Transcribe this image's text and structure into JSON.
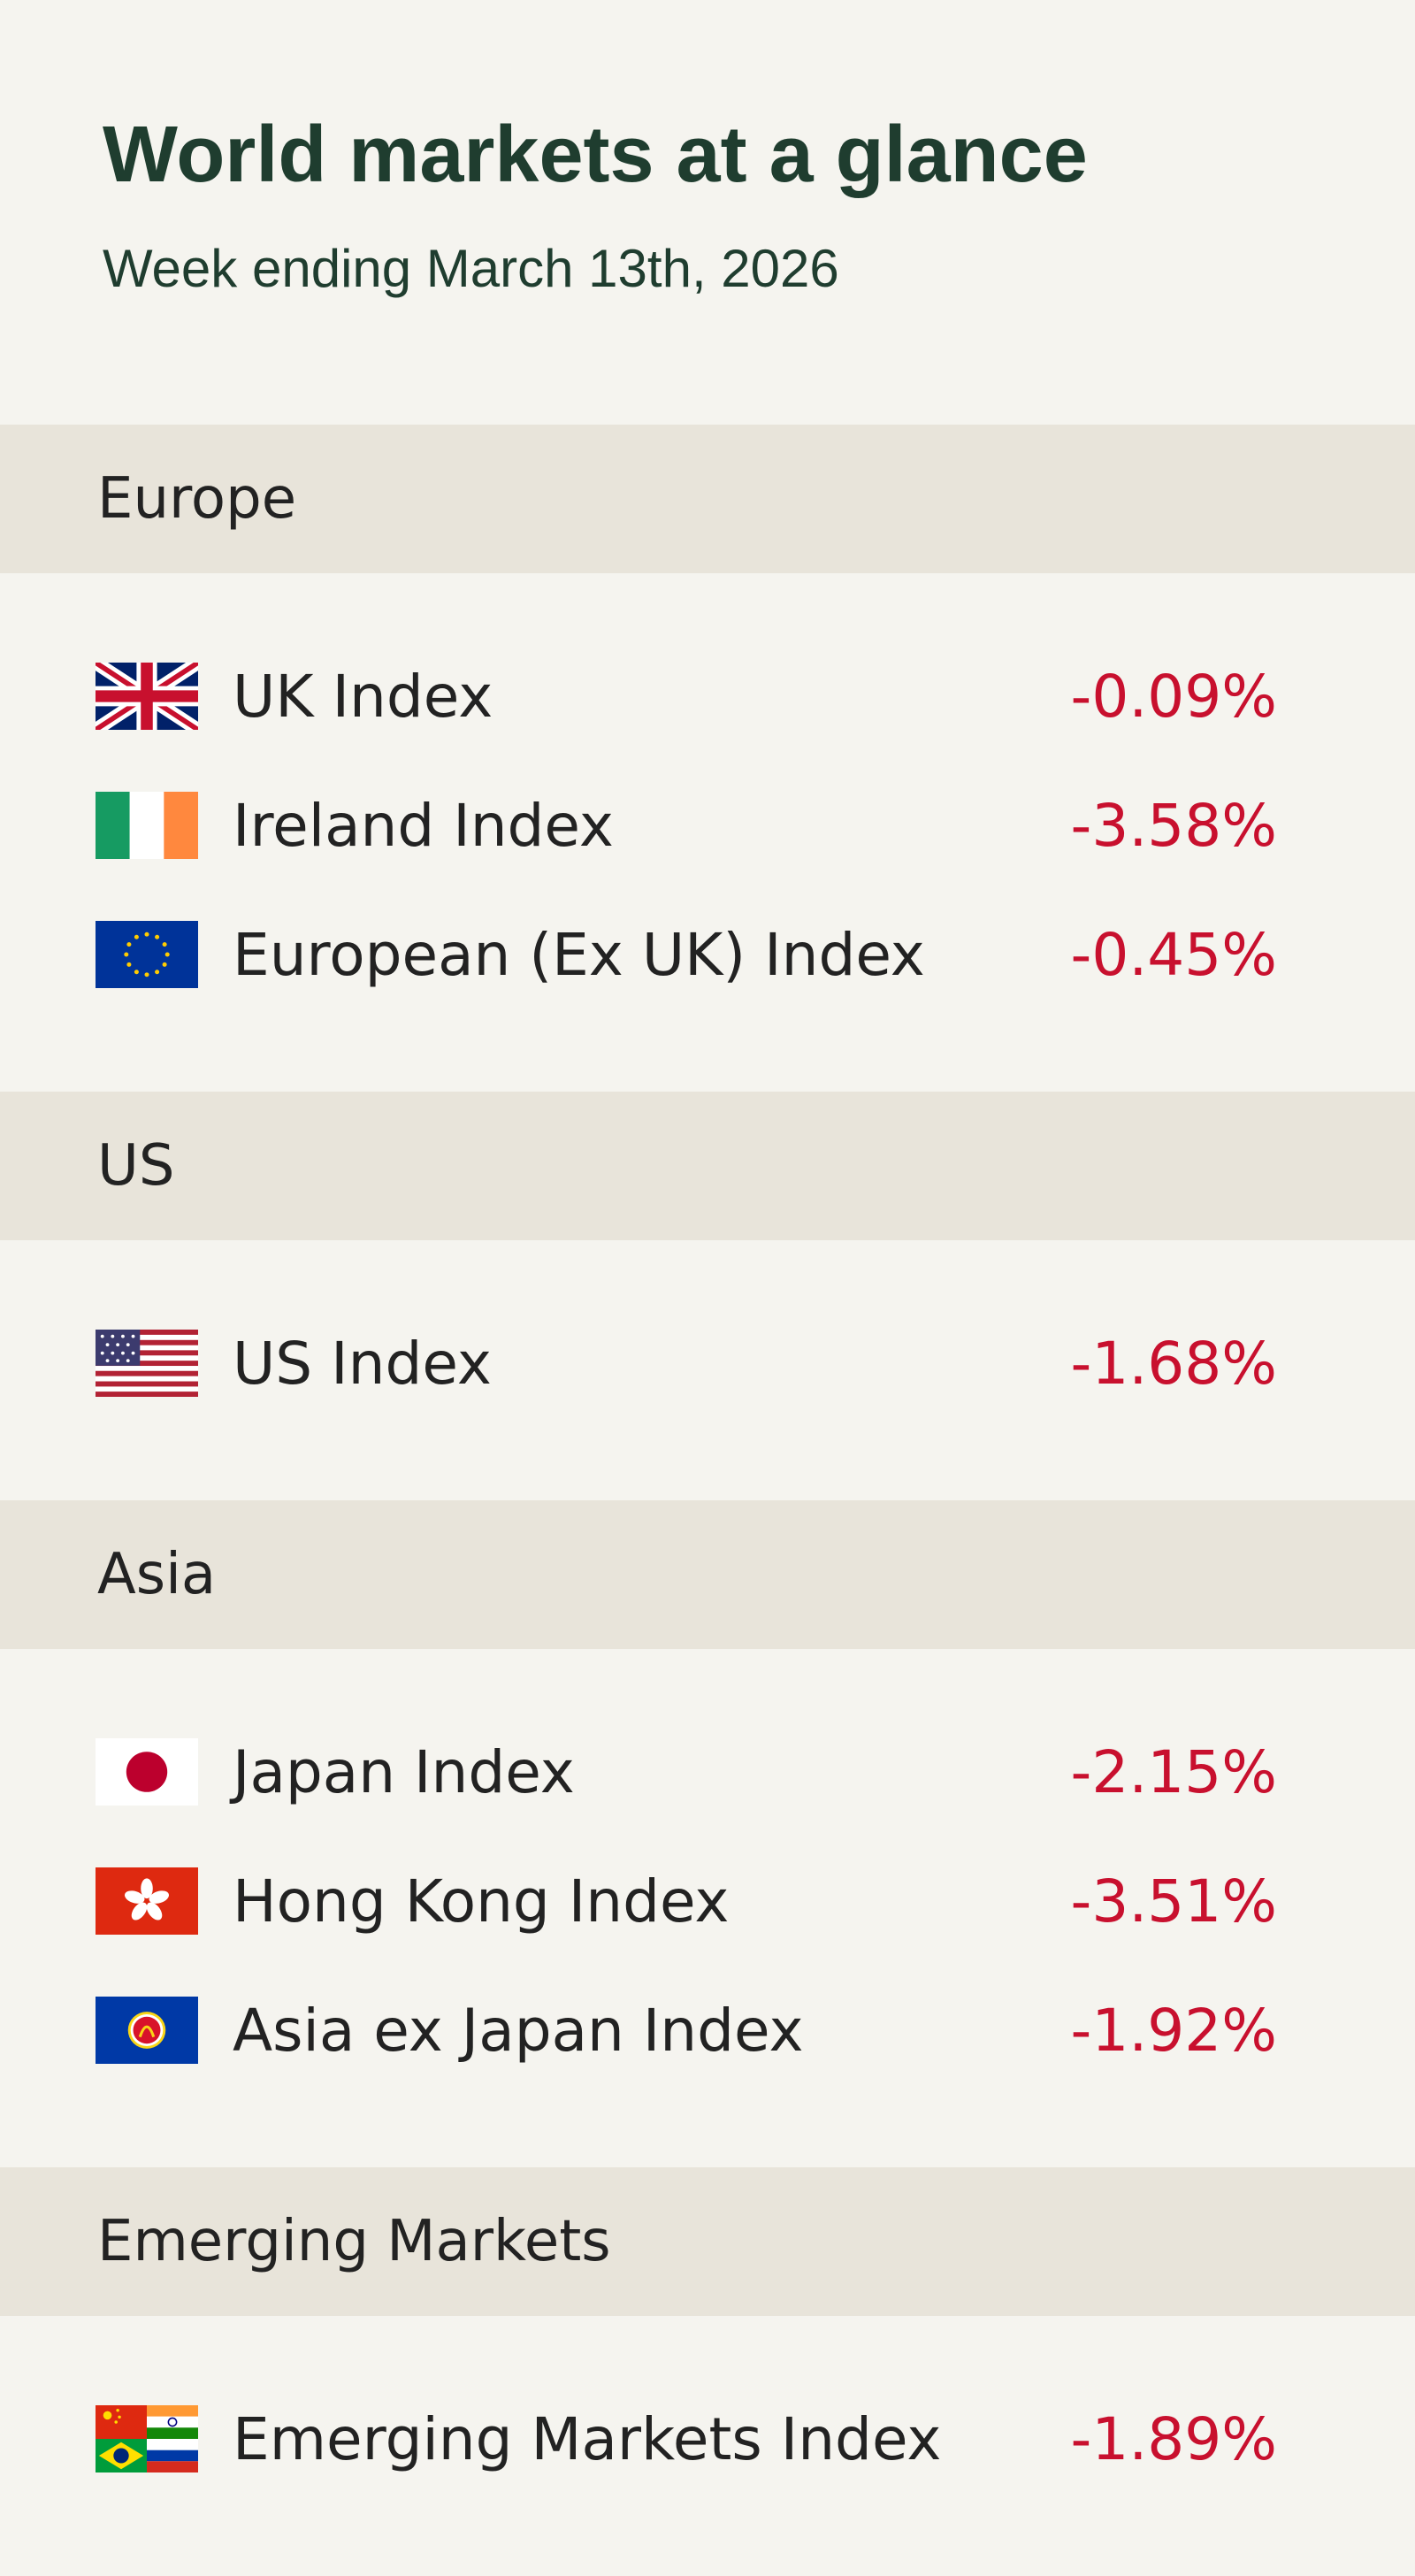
{
  "header": {
    "title": "World markets at a glance",
    "subtitle": "Week ending March 13th, 2026"
  },
  "sections": [
    {
      "name": "Europe",
      "rows": [
        {
          "label": "UK Index",
          "value": "-0.09%"
        },
        {
          "label": "Ireland Index",
          "value": "-3.58%"
        },
        {
          "label": "European (Ex UK) Index",
          "value": "-0.45%"
        }
      ]
    },
    {
      "name": "US",
      "rows": [
        {
          "label": "US Index",
          "value": "-1.68%"
        }
      ]
    },
    {
      "name": "Asia",
      "rows": [
        {
          "label": "Japan Index",
          "value": "-2.15%"
        },
        {
          "label": "Hong Kong Index",
          "value": "-3.51%"
        },
        {
          "label": "Asia ex Japan Index",
          "value": "-1.92%"
        }
      ]
    },
    {
      "name": "Emerging Markets",
      "rows": [
        {
          "label": "Emerging Markets Index",
          "value": "-1.89%"
        }
      ]
    }
  ]
}
